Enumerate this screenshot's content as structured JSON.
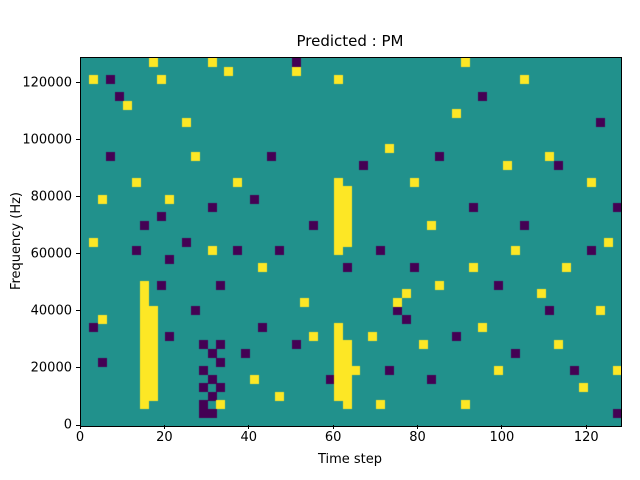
{
  "chart_data": {
    "type": "heatmap",
    "title": "Predicted : PM",
    "xlabel": "Time step",
    "ylabel": "Frequency (Hz)",
    "x_range": [
      0,
      128
    ],
    "y_range": [
      0,
      129000
    ],
    "x_ticks": [
      {
        "v": 0,
        "label": "0"
      },
      {
        "v": 20,
        "label": "20"
      },
      {
        "v": 40,
        "label": "40"
      },
      {
        "v": 60,
        "label": "60"
      },
      {
        "v": 80,
        "label": "80"
      },
      {
        "v": 100,
        "label": "100"
      },
      {
        "v": 120,
        "label": "120"
      }
    ],
    "y_ticks": [
      {
        "v": 0,
        "label": "0"
      },
      {
        "v": 20000,
        "label": "20000"
      },
      {
        "v": 40000,
        "label": "40000"
      },
      {
        "v": 60000,
        "label": "60000"
      },
      {
        "v": 80000,
        "label": "80000"
      },
      {
        "v": 100000,
        "label": "100000"
      },
      {
        "v": 120000,
        "label": "120000"
      }
    ],
    "grid_cols": 64,
    "grid_rows": 43,
    "colormap": {
      "background": "#21918c",
      "low": "#440154",
      "high": "#fde725"
    },
    "legend": "none",
    "grid": false,
    "cells_high": [
      [
        1,
        40
      ],
      [
        1,
        21
      ],
      [
        2,
        26
      ],
      [
        2,
        12
      ],
      [
        5,
        37
      ],
      [
        6,
        28
      ],
      [
        7,
        2
      ],
      [
        7,
        3
      ],
      [
        7,
        4
      ],
      [
        7,
        5
      ],
      [
        7,
        6
      ],
      [
        7,
        7
      ],
      [
        7,
        8
      ],
      [
        7,
        9
      ],
      [
        7,
        10
      ],
      [
        7,
        11
      ],
      [
        7,
        12
      ],
      [
        7,
        13
      ],
      [
        7,
        14
      ],
      [
        7,
        15
      ],
      [
        7,
        16
      ],
      [
        8,
        3
      ],
      [
        8,
        4
      ],
      [
        8,
        5
      ],
      [
        8,
        6
      ],
      [
        8,
        7
      ],
      [
        8,
        8
      ],
      [
        8,
        9
      ],
      [
        8,
        10
      ],
      [
        8,
        11
      ],
      [
        8,
        12
      ],
      [
        8,
        13
      ],
      [
        8,
        42
      ],
      [
        9,
        40
      ],
      [
        10,
        26
      ],
      [
        12,
        35
      ],
      [
        13,
        31
      ],
      [
        15,
        20
      ],
      [
        15,
        42
      ],
      [
        16,
        2
      ],
      [
        17,
        41
      ],
      [
        18,
        28
      ],
      [
        20,
        5
      ],
      [
        21,
        18
      ],
      [
        23,
        3
      ],
      [
        25,
        41
      ],
      [
        26,
        14
      ],
      [
        27,
        10
      ],
      [
        30,
        3
      ],
      [
        30,
        4
      ],
      [
        30,
        5
      ],
      [
        30,
        6
      ],
      [
        30,
        7
      ],
      [
        30,
        8
      ],
      [
        30,
        9
      ],
      [
        30,
        10
      ],
      [
        30,
        11
      ],
      [
        31,
        2
      ],
      [
        31,
        3
      ],
      [
        31,
        4
      ],
      [
        31,
        5
      ],
      [
        31,
        6
      ],
      [
        31,
        7
      ],
      [
        31,
        8
      ],
      [
        31,
        9
      ],
      [
        30,
        20
      ],
      [
        30,
        21
      ],
      [
        30,
        22
      ],
      [
        30,
        23
      ],
      [
        30,
        24
      ],
      [
        30,
        25
      ],
      [
        30,
        26
      ],
      [
        30,
        27
      ],
      [
        30,
        28
      ],
      [
        31,
        21
      ],
      [
        31,
        22
      ],
      [
        31,
        23
      ],
      [
        31,
        24
      ],
      [
        31,
        25
      ],
      [
        31,
        26
      ],
      [
        31,
        27
      ],
      [
        30,
        40
      ],
      [
        32,
        6
      ],
      [
        34,
        10
      ],
      [
        35,
        2
      ],
      [
        36,
        32
      ],
      [
        37,
        14
      ],
      [
        38,
        15
      ],
      [
        39,
        28
      ],
      [
        40,
        9
      ],
      [
        41,
        23
      ],
      [
        42,
        16
      ],
      [
        44,
        36
      ],
      [
        45,
        2
      ],
      [
        45,
        42
      ],
      [
        46,
        18
      ],
      [
        47,
        11
      ],
      [
        49,
        6
      ],
      [
        50,
        30
      ],
      [
        51,
        20
      ],
      [
        52,
        40
      ],
      [
        54,
        15
      ],
      [
        55,
        31
      ],
      [
        56,
        9
      ],
      [
        57,
        18
      ],
      [
        59,
        4
      ],
      [
        60,
        28
      ],
      [
        61,
        13
      ],
      [
        62,
        21
      ],
      [
        63,
        6
      ]
    ],
    "cells_low": [
      [
        1,
        11
      ],
      [
        2,
        7
      ],
      [
        3,
        31
      ],
      [
        3,
        40
      ],
      [
        4,
        38
      ],
      [
        6,
        20
      ],
      [
        7,
        23
      ],
      [
        9,
        16
      ],
      [
        9,
        24
      ],
      [
        10,
        10
      ],
      [
        10,
        19
      ],
      [
        12,
        21
      ],
      [
        13,
        13
      ],
      [
        14,
        1
      ],
      [
        14,
        2
      ],
      [
        14,
        4
      ],
      [
        14,
        6
      ],
      [
        14,
        9
      ],
      [
        15,
        1
      ],
      [
        15,
        3
      ],
      [
        15,
        5
      ],
      [
        15,
        8
      ],
      [
        16,
        4
      ],
      [
        16,
        7
      ],
      [
        16,
        9
      ],
      [
        15,
        25
      ],
      [
        16,
        16
      ],
      [
        18,
        20
      ],
      [
        19,
        8
      ],
      [
        20,
        26
      ],
      [
        21,
        11
      ],
      [
        22,
        31
      ],
      [
        23,
        20
      ],
      [
        25,
        9
      ],
      [
        25,
        42
      ],
      [
        27,
        23
      ],
      [
        29,
        5
      ],
      [
        31,
        18
      ],
      [
        33,
        30
      ],
      [
        35,
        20
      ],
      [
        36,
        6
      ],
      [
        37,
        13
      ],
      [
        38,
        12
      ],
      [
        39,
        18
      ],
      [
        41,
        5
      ],
      [
        42,
        31
      ],
      [
        44,
        10
      ],
      [
        46,
        25
      ],
      [
        47,
        38
      ],
      [
        49,
        16
      ],
      [
        51,
        8
      ],
      [
        52,
        23
      ],
      [
        55,
        13
      ],
      [
        56,
        30
      ],
      [
        58,
        6
      ],
      [
        60,
        20
      ],
      [
        61,
        35
      ],
      [
        63,
        1
      ],
      [
        63,
        25
      ]
    ]
  }
}
